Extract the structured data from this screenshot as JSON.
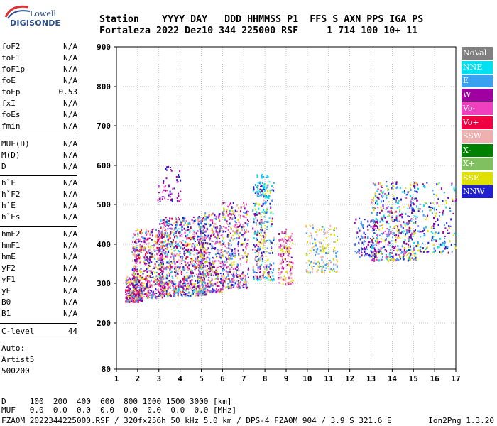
{
  "logo": {
    "line1": "Lowell",
    "line2": "DIGISONDE"
  },
  "header": {
    "line1": "Station    YYYY DAY   DDD HHMMSS P1  FFS S AXN PPS IGA PS",
    "line2": "Fortaleza 2022 Dez10 344 225000 RSF     1 714 100 10+ 11"
  },
  "params": {
    "group1": [
      {
        "name": "foF2",
        "value": "N/A"
      },
      {
        "name": "foF1",
        "value": "N/A"
      },
      {
        "name": "foF1p",
        "value": "N/A"
      },
      {
        "name": "foE",
        "value": "N/A"
      },
      {
        "name": "foEp",
        "value": "0.53"
      },
      {
        "name": "fxI",
        "value": "N/A"
      },
      {
        "name": "foEs",
        "value": "N/A"
      },
      {
        "name": "fmin",
        "value": "N/A"
      }
    ],
    "group2": [
      {
        "name": "MUF(D)",
        "value": "N/A"
      },
      {
        "name": "M(D)",
        "value": "N/A"
      },
      {
        "name": "D",
        "value": "N/A"
      }
    ],
    "group3": [
      {
        "name": "h`F",
        "value": "N/A"
      },
      {
        "name": "h`F2",
        "value": "N/A"
      },
      {
        "name": "h`E",
        "value": "N/A"
      },
      {
        "name": "h`Es",
        "value": "N/A"
      }
    ],
    "group4": [
      {
        "name": "hmF2",
        "value": "N/A"
      },
      {
        "name": "hmF1",
        "value": "N/A"
      },
      {
        "name": "hmE",
        "value": "N/A"
      },
      {
        "name": "yF2",
        "value": "N/A"
      },
      {
        "name": "yF1",
        "value": "N/A"
      },
      {
        "name": "yE",
        "value": "N/A"
      },
      {
        "name": "B0",
        "value": "N/A"
      },
      {
        "name": "B1",
        "value": "N/A"
      }
    ],
    "clevel": {
      "name": "C-level",
      "value": "44"
    }
  },
  "auto": {
    "line1": "Auto:",
    "line2": "Artist5",
    "line3": "500200"
  },
  "footer": {
    "d_row": "D     100  200  400  600  800 1000 1500 3000 [km]",
    "muf_row": "MUF   0.0  0.0  0.0  0.0  0.0  0.0  0.0  0.0 [MHz]",
    "file_row": "FZA0M_2022344225000.RSF / 320fx256h 50 kHz 5.0 km / DPS-4 FZA0M 904 / 3.9 S 321.6 E",
    "version": "Ion2Png 1.3.20"
  },
  "legend": [
    {
      "label": "NoVal",
      "color": "#808080"
    },
    {
      "label": "NNE",
      "color": "#00e0f0"
    },
    {
      "label": "E",
      "color": "#3aa0f0"
    },
    {
      "label": "W",
      "color": "#a000a0"
    },
    {
      "label": "Vo-",
      "color": "#f040c0"
    },
    {
      "label": "Vo+",
      "color": "#f00040"
    },
    {
      "label": "SSW",
      "color": "#f0b0b0"
    },
    {
      "label": "X-",
      "color": "#008000"
    },
    {
      "label": "X+",
      "color": "#80c060"
    },
    {
      "label": "SSE",
      "color": "#e0e000"
    },
    {
      "label": "NNW",
      "color": "#2020d0"
    }
  ],
  "chart_data": {
    "type": "scatter",
    "xlim": [
      1,
      17
    ],
    "ylim": [
      80,
      900
    ],
    "xticks": [
      "1",
      "2",
      "3",
      "4",
      "5",
      "6",
      "7",
      "8",
      "9",
      "10",
      "11",
      "12",
      "13",
      "14",
      "15",
      "16",
      "17"
    ],
    "yticks": [
      "900",
      "800",
      "700",
      "600",
      "500",
      "400",
      "300",
      "200",
      "80"
    ],
    "ytick_values": [
      900,
      800,
      700,
      600,
      500,
      400,
      300,
      200,
      80
    ],
    "grid": "dotted",
    "clusters": [
      {
        "x": [
          1.4,
          2.2
        ],
        "y": [
          255,
          320
        ],
        "colors": [
          "#e0e000",
          "#3aa0f0",
          "#f040c0",
          "#a000a0",
          "#2020d0",
          "#f0b0b0",
          "#f00040"
        ],
        "n": 260
      },
      {
        "x": [
          1.7,
          3.2
        ],
        "y": [
          265,
          440
        ],
        "colors": [
          "#f040c0",
          "#a000a0",
          "#2020d0",
          "#e0e000",
          "#f00040",
          "#3aa0f0",
          "#f0b0b0"
        ],
        "n": 520
      },
      {
        "x": [
          3.0,
          5.2
        ],
        "y": [
          270,
          470
        ],
        "colors": [
          "#a000a0",
          "#f040c0",
          "#2020d0",
          "#e0e000",
          "#f00040",
          "#3aa0f0",
          "#00e0f0",
          "#f0b0b0"
        ],
        "n": 900
      },
      {
        "x": [
          4.8,
          6.0
        ],
        "y": [
          280,
          480
        ],
        "colors": [
          "#e0e000",
          "#f040c0",
          "#a000a0",
          "#2020d0",
          "#f0b0b0",
          "#3aa0f0"
        ],
        "n": 420
      },
      {
        "x": [
          6.0,
          7.2
        ],
        "y": [
          290,
          510
        ],
        "colors": [
          "#f0b0b0",
          "#e0e000",
          "#f040c0",
          "#a000a0",
          "#2020d0",
          "#3aa0f0"
        ],
        "n": 380
      },
      {
        "x": [
          7.4,
          8.4
        ],
        "y": [
          310,
          560
        ],
        "colors": [
          "#e0e000",
          "#2020d0",
          "#a000a0",
          "#3aa0f0",
          "#00e0f0",
          "#f0b0b0"
        ],
        "n": 320
      },
      {
        "x": [
          8.6,
          9.3
        ],
        "y": [
          300,
          440
        ],
        "colors": [
          "#e0e000",
          "#f0b0b0",
          "#f040c0",
          "#a000a0"
        ],
        "n": 140
      },
      {
        "x": [
          9.9,
          11.4
        ],
        "y": [
          330,
          450
        ],
        "colors": [
          "#f0b0b0",
          "#3aa0f0",
          "#e0e000"
        ],
        "n": 160
      },
      {
        "x": [
          12.2,
          13.3
        ],
        "y": [
          370,
          470
        ],
        "colors": [
          "#2020d0",
          "#a000a0",
          "#3aa0f0"
        ],
        "n": 110
      },
      {
        "x": [
          13.0,
          15.2
        ],
        "y": [
          360,
          560
        ],
        "colors": [
          "#2020d0",
          "#a000a0",
          "#3aa0f0",
          "#f040c0",
          "#e0e000",
          "#00e0f0"
        ],
        "n": 520
      },
      {
        "x": [
          15.2,
          17.0
        ],
        "y": [
          380,
          560
        ],
        "colors": [
          "#e0e000",
          "#3aa0f0",
          "#00e0f0",
          "#a000a0",
          "#2020d0"
        ],
        "n": 170
      },
      {
        "x": [
          2.9,
          4.0
        ],
        "y": [
          510,
          600
        ],
        "colors": [
          "#a000a0",
          "#f040c0",
          "#2020d0"
        ],
        "n": 60
      },
      {
        "x": [
          7.5,
          8.2
        ],
        "y": [
          520,
          580
        ],
        "colors": [
          "#00e0f0",
          "#3aa0f0"
        ],
        "n": 40
      }
    ]
  }
}
